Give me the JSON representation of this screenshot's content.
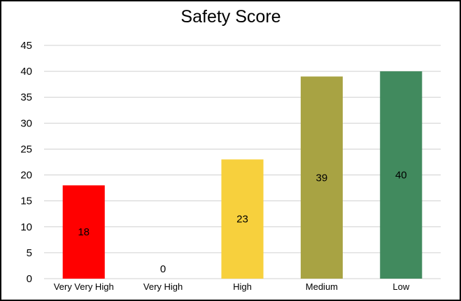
{
  "chart_data": {
    "type": "bar",
    "title": "Safety Score",
    "xlabel": "",
    "ylabel": "",
    "categories": [
      "Very Very High",
      "Very High",
      "High",
      "Medium",
      "Low"
    ],
    "values": [
      18,
      0,
      23,
      39,
      40
    ],
    "data_labels": [
      "18",
      "0",
      "23",
      "39",
      "40"
    ],
    "colors": [
      "#ff0000",
      "#ffffff",
      "#f7d03d",
      "#a8a343",
      "#418a5e"
    ],
    "ylim": [
      0,
      45
    ],
    "yticks": [
      "0",
      "5",
      "10",
      "15",
      "20",
      "25",
      "30",
      "35",
      "40",
      "45"
    ],
    "grid": true,
    "legend": "none"
  }
}
